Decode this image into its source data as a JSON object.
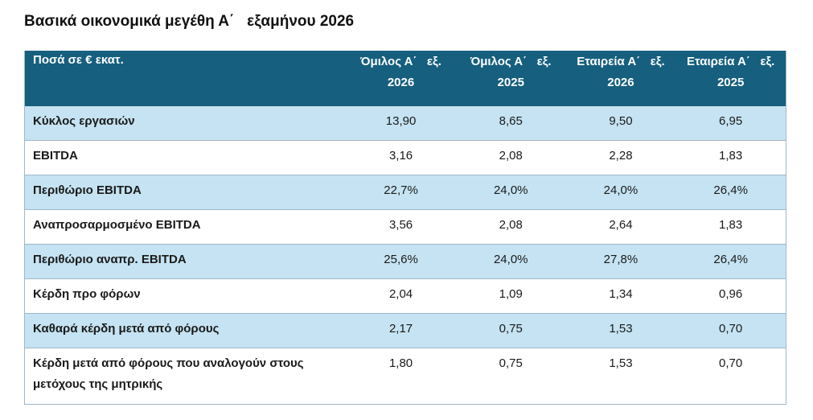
{
  "title": "Βασικά οικονομικά μεγέθη Α΄   εξαμήνου 2026",
  "table": {
    "header_label": "Ποσά σε € εκατ.",
    "columns": [
      {
        "line1": "Όμιλος Α΄   εξ.",
        "line2": "2026"
      },
      {
        "line1": "Όμιλος Α΄   εξ.",
        "line2": "2025"
      },
      {
        "line1": "Εταιρεία Α΄   εξ.",
        "line2": "2026"
      },
      {
        "line1": "Εταιρεία Α΄   εξ.",
        "line2": "2025"
      }
    ],
    "rows": [
      {
        "label": "Κύκλος εργασιών",
        "values": [
          "13,90",
          "8,65",
          "9,50",
          "6,95"
        ]
      },
      {
        "label": "EBITDA",
        "values": [
          "3,16",
          "2,08",
          "2,28",
          "1,83"
        ]
      },
      {
        "label": "Περιθώριο EBITDA",
        "values": [
          "22,7%",
          "24,0%",
          "24,0%",
          "26,4%"
        ]
      },
      {
        "label": "Αναπροσαρμοσμένο EBITDA",
        "values": [
          "3,56",
          "2,08",
          "2,64",
          "1,83"
        ]
      },
      {
        "label": "Περιθώριο αναπρ. EBITDA",
        "values": [
          "25,6%",
          "24,0%",
          "27,8%",
          "26,4%"
        ]
      },
      {
        "label": "Κέρδη προ φόρων",
        "values": [
          "2,04",
          "1,09",
          "1,34",
          "0,96"
        ]
      },
      {
        "label": "Καθαρά κέρδη μετά από φόρους",
        "values": [
          "2,17",
          "0,75",
          "1,53",
          "0,70"
        ]
      },
      {
        "label_line1": "Κέρδη μετά από φόρους που αναλογούν στους",
        "label_line2": "μετόχους της μητρικής",
        "values": [
          "1,80",
          "0,75",
          "1,53",
          "0,70"
        ]
      }
    ]
  },
  "colors": {
    "header_bg": "#165f7e",
    "row_shade": "#c5e3f2",
    "border": "#9fb8c8"
  }
}
